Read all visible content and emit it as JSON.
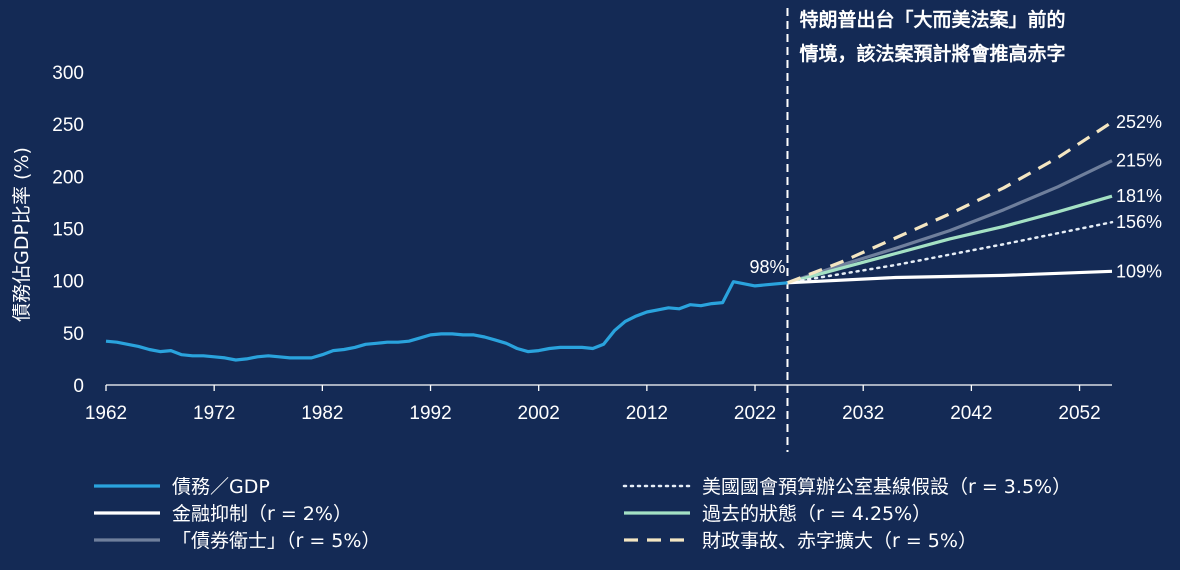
{
  "chart_data": {
    "type": "line",
    "title": "",
    "xlabel": "",
    "ylabel": "債務佔GDP比率 (%)",
    "xlim": [
      1962,
      2055
    ],
    "ylim": [
      0,
      300
    ],
    "xticks": [
      1962,
      1972,
      1982,
      1992,
      2002,
      2012,
      2022,
      2032,
      2042,
      2052
    ],
    "yticks": [
      0,
      50,
      100,
      150,
      200,
      250,
      300
    ],
    "grid": false,
    "legend_position": "bottom",
    "annotation": {
      "x": 2025,
      "line_style": "dashed vertical",
      "text_line1": "特朗普出台「大而美法案」前的",
      "text_line2": "情境，該法案預計將會推高赤字"
    },
    "start_label": "98%",
    "series": [
      {
        "name": "債務／GDP",
        "color": "#2aa3dd",
        "style": "solid",
        "x": [
          1962,
          1963,
          1964,
          1965,
          1966,
          1967,
          1968,
          1969,
          1970,
          1971,
          1972,
          1973,
          1974,
          1975,
          1976,
          1977,
          1978,
          1979,
          1980,
          1981,
          1982,
          1983,
          1984,
          1985,
          1986,
          1987,
          1988,
          1989,
          1990,
          1991,
          1992,
          1993,
          1994,
          1995,
          1996,
          1997,
          1998,
          1999,
          2000,
          2001,
          2002,
          2003,
          2004,
          2005,
          2006,
          2007,
          2008,
          2009,
          2010,
          2011,
          2012,
          2013,
          2014,
          2015,
          2016,
          2017,
          2018,
          2019,
          2020,
          2021,
          2022,
          2023,
          2024,
          2025
        ],
        "y": [
          42,
          41,
          39,
          37,
          34,
          32,
          33,
          29,
          28,
          28,
          27,
          26,
          24,
          25,
          27,
          28,
          27,
          26,
          26,
          26,
          29,
          33,
          34,
          36,
          39,
          40,
          41,
          41,
          42,
          45,
          48,
          49,
          49,
          48,
          48,
          46,
          43,
          40,
          35,
          32,
          33,
          35,
          36,
          36,
          36,
          35,
          39,
          52,
          61,
          66,
          70,
          72,
          74,
          73,
          77,
          76,
          78,
          79,
          99,
          97,
          95,
          96,
          97,
          98
        ]
      },
      {
        "name": "金融抑制（r = 2%）",
        "color": "#ffffff",
        "style": "solid",
        "end_label": "109%",
        "x": [
          2025,
          2035,
          2045,
          2055
        ],
        "y": [
          98,
          103,
          105,
          109
        ]
      },
      {
        "name": "「債券衛士」（r = 5%）",
        "color": "#6f7f9c",
        "style": "solid",
        "end_label": "215%",
        "x": [
          2025,
          2030,
          2035,
          2040,
          2045,
          2050,
          2055
        ],
        "y": [
          98,
          115,
          131,
          148,
          168,
          190,
          215
        ]
      },
      {
        "name": "美國國會預算辦公室基線假設（r = 3.5%）",
        "color": "#e6eef7",
        "style": "dotted",
        "end_label": "156%",
        "x": [
          2025,
          2035,
          2045,
          2055
        ],
        "y": [
          98,
          115,
          135,
          156
        ]
      },
      {
        "name": "過去的狀態（r = 4.25%）",
        "color": "#a4e1c4",
        "style": "solid",
        "end_label": "181%",
        "x": [
          2025,
          2030,
          2035,
          2040,
          2045,
          2050,
          2055
        ],
        "y": [
          98,
          112,
          126,
          140,
          152,
          166,
          181
        ]
      },
      {
        "name": "財政事故、赤字擴大（r = 5%）",
        "color": "#f4e6c2",
        "style": "dashed",
        "end_label": "252%",
        "x": [
          2025,
          2030,
          2035,
          2040,
          2045,
          2050,
          2055
        ],
        "y": [
          98,
          118,
          141,
          164,
          189,
          218,
          252
        ]
      }
    ]
  }
}
